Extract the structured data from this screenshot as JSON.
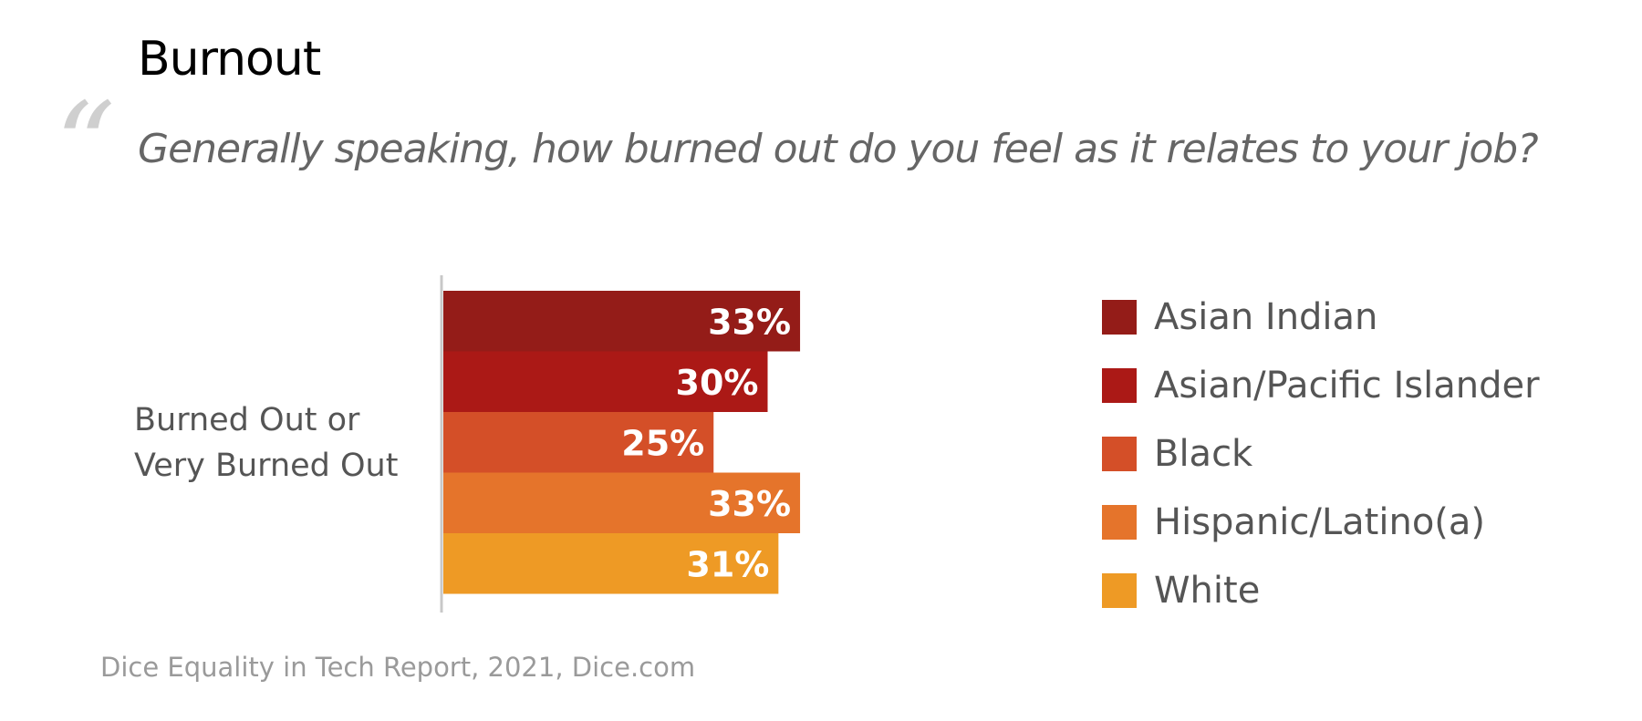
{
  "title": "Burnout",
  "quote_mark": "“",
  "question": "Generally speaking, how burned out do you feel as it relates to your job?",
  "source": "Dice Equality in Tech Report, 2021, Dice.com",
  "chart_data": {
    "type": "bar",
    "orientation": "horizontal",
    "categories": [
      "Burned Out or Very Burned Out"
    ],
    "category_label_lines": [
      "Burned Out or",
      "Very Burned Out"
    ],
    "value_format": "{v}%",
    "xlim": [
      0,
      100
    ],
    "grid": false,
    "legend_position": "right",
    "series": [
      {
        "name": "Asian Indian",
        "values": [
          33
        ],
        "color": "#941c18"
      },
      {
        "name": "Asian/Pacific Islander",
        "values": [
          30
        ],
        "color": "#ab1916"
      },
      {
        "name": "Black",
        "values": [
          25
        ],
        "color": "#d44f28"
      },
      {
        "name": "Hispanic/Latino(a)",
        "values": [
          33
        ],
        "color": "#e5742b"
      },
      {
        "name": "White",
        "values": [
          31
        ],
        "color": "#ee9a25"
      }
    ]
  }
}
